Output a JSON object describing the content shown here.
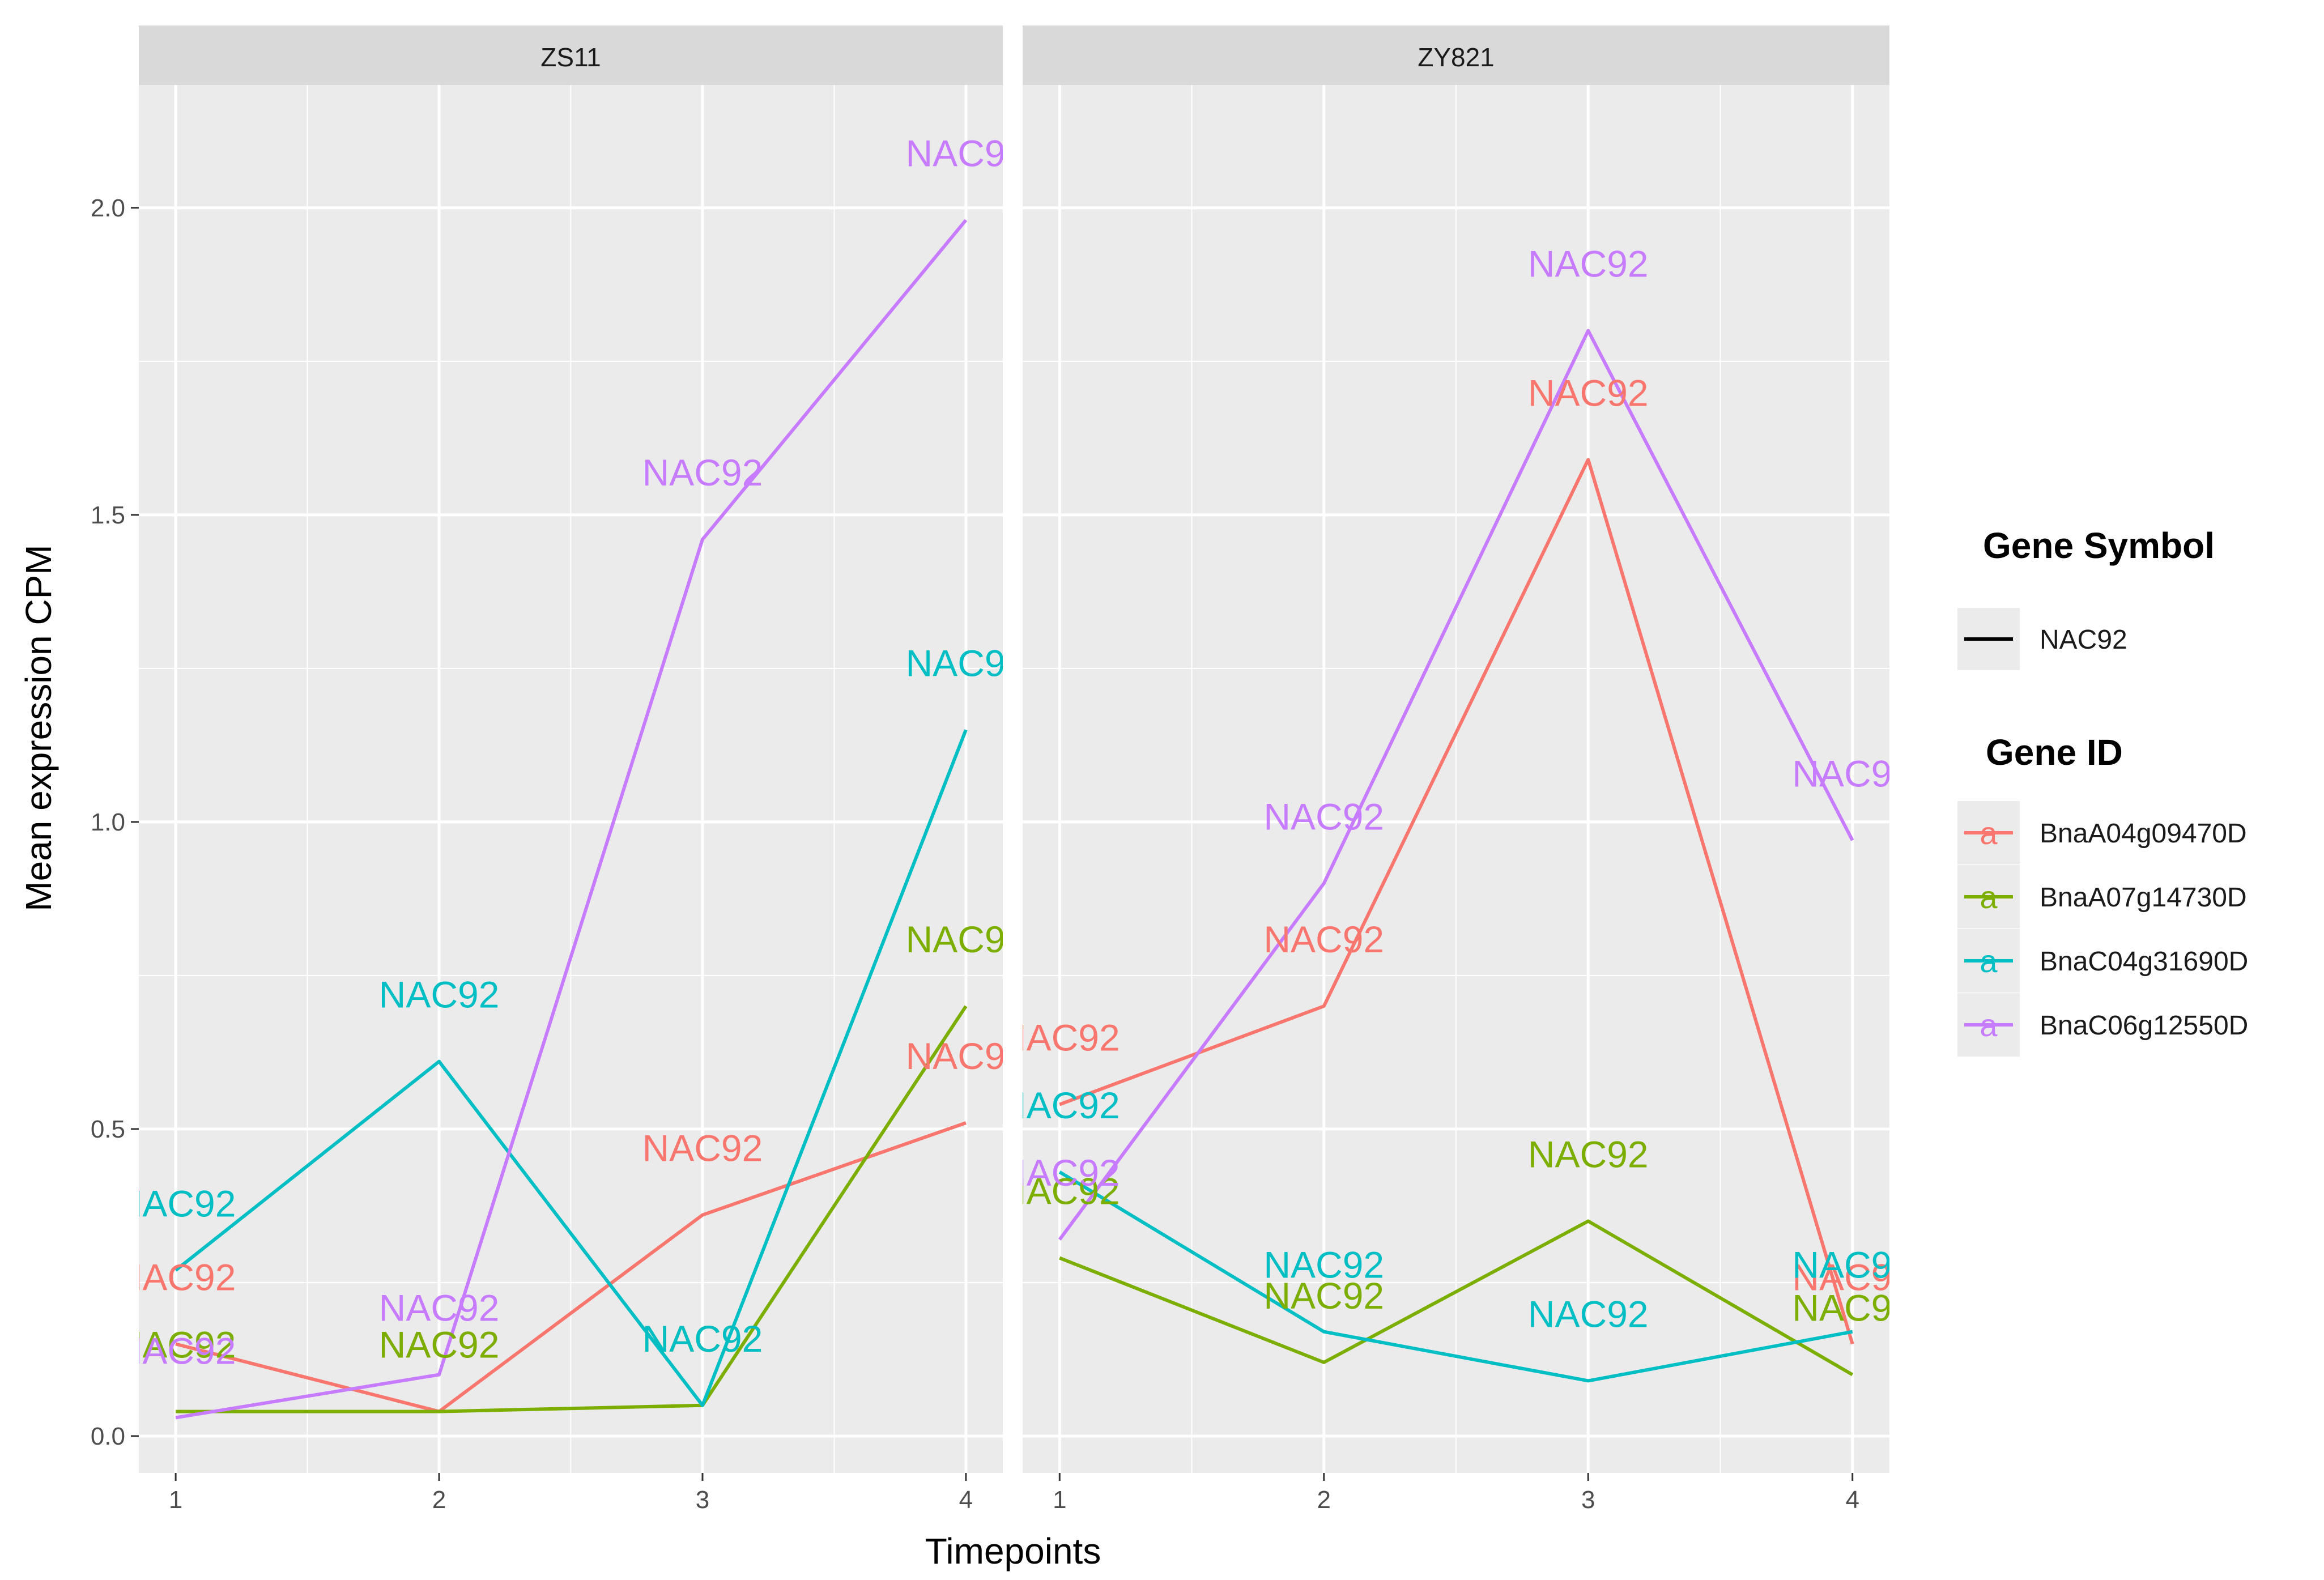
{
  "chart_data": {
    "type": "line",
    "xlabel": "Timepoints",
    "ylabel": "Mean expression CPM",
    "x": [
      1,
      2,
      3,
      4
    ],
    "x_tick_labels": [
      "1",
      "2",
      "3",
      "4"
    ],
    "xlim": [
      0.86,
      4.14
    ],
    "ylim": [
      -0.06,
      2.2
    ],
    "y_ticks": [
      0.0,
      0.5,
      1.0,
      1.5,
      2.0
    ],
    "y_tick_labels": [
      "0.0",
      "0.5",
      "1.0",
      "1.5",
      "2.0"
    ],
    "grid": true,
    "point_label": "NAC92",
    "facets": [
      {
        "name": "ZS11",
        "series": [
          {
            "name": "BnaA04g09470D",
            "values": [
              0.15,
              0.04,
              0.36,
              0.51
            ]
          },
          {
            "name": "BnaA07g14730D",
            "values": [
              0.04,
              0.04,
              0.05,
              0.7
            ]
          },
          {
            "name": "BnaC04g31690D",
            "values": [
              0.27,
              0.61,
              0.05,
              1.15
            ]
          },
          {
            "name": "BnaC06g12550D",
            "values": [
              0.03,
              0.1,
              1.46,
              1.98
            ]
          }
        ]
      },
      {
        "name": "ZY821",
        "series": [
          {
            "name": "BnaA04g09470D",
            "values": [
              0.54,
              0.7,
              1.59,
              0.15
            ]
          },
          {
            "name": "BnaA07g14730D",
            "values": [
              0.29,
              0.12,
              0.35,
              0.1
            ]
          },
          {
            "name": "BnaC04g31690D",
            "values": [
              0.43,
              0.17,
              0.09,
              0.17
            ]
          },
          {
            "name": "BnaC06g12550D",
            "values": [
              0.32,
              0.9,
              1.8,
              0.97
            ]
          }
        ]
      }
    ],
    "legend": {
      "position": "right",
      "symbol_title": "Gene Symbol",
      "symbol_entries": [
        "NAC92"
      ],
      "id_title": "Gene ID",
      "id_key_glyph": "a",
      "id_entries": [
        "BnaA04g09470D",
        "BnaA07g14730D",
        "BnaC04g31690D",
        "BnaC06g12550D"
      ]
    }
  },
  "colors": {
    "BnaA04g09470D": "#F8766D",
    "BnaA07g14730D": "#7CAE00",
    "BnaC04g31690D": "#00BFC4",
    "BnaC06g12550D": "#C77CFF",
    "panel_bg": "#EBEBEB",
    "strip_bg": "#D9D9D9",
    "grid": "#FFFFFF"
  }
}
